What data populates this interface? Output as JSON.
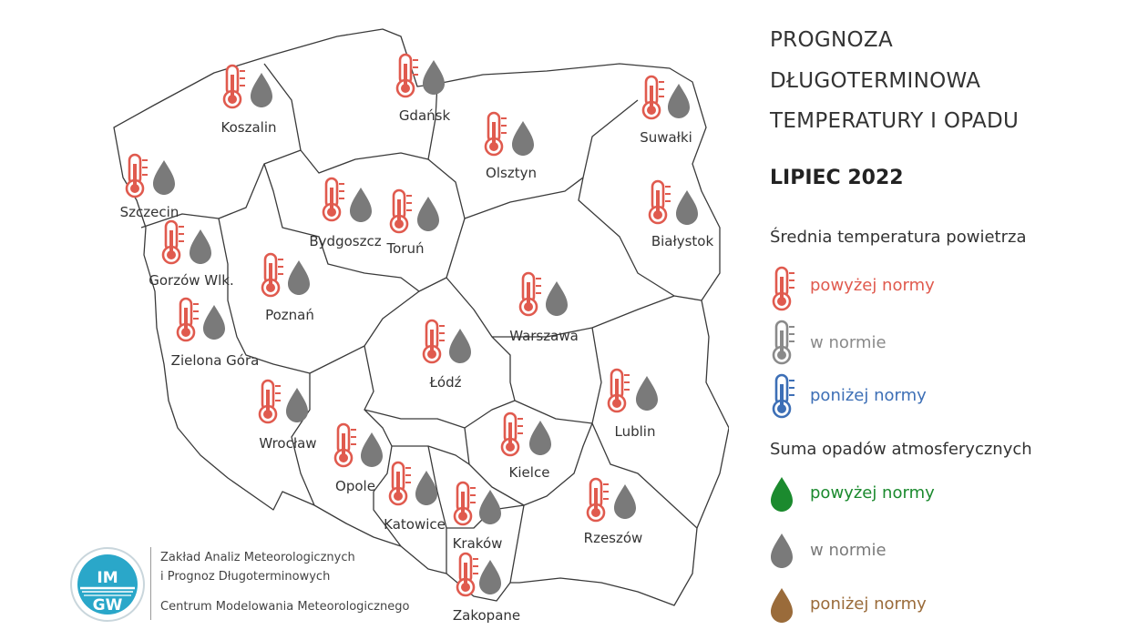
{
  "title_lines": [
    "PROGNOZA",
    "DŁUGOTERMINOWA",
    "TEMPERATURY I OPADU"
  ],
  "month": "LIPIEC 2022",
  "legend": {
    "temp_heading": "Średnia temperatura powietrza",
    "temp_items": [
      {
        "label": "powyżej normy",
        "color": "#e05a4e"
      },
      {
        "label": "w normie",
        "color": "#8a8a8a"
      },
      {
        "label": "poniżej normy",
        "color": "#3d6fb6"
      }
    ],
    "precip_heading": "Suma opadów atmosferycznych",
    "precip_items": [
      {
        "label": "powyżej normy",
        "color": "#1b8a2e"
      },
      {
        "label": "w normie",
        "color": "#7a7a7a"
      },
      {
        "label": "poniżej normy",
        "color": "#9a6b3a"
      }
    ]
  },
  "cities": [
    {
      "name": "Koszalin",
      "temp": "above",
      "precip": "normal"
    },
    {
      "name": "Gdańsk",
      "temp": "above",
      "precip": "normal"
    },
    {
      "name": "Suwałki",
      "temp": "above",
      "precip": "normal"
    },
    {
      "name": "Olsztyn",
      "temp": "above",
      "precip": "normal"
    },
    {
      "name": "Szczecin",
      "temp": "above",
      "precip": "normal"
    },
    {
      "name": "Bydgoszcz",
      "temp": "above",
      "precip": "normal"
    },
    {
      "name": "Toruń",
      "temp": "above",
      "precip": "normal"
    },
    {
      "name": "Białystok",
      "temp": "above",
      "precip": "normal"
    },
    {
      "name": "Gorzów Wlk.",
      "temp": "above",
      "precip": "normal"
    },
    {
      "name": "Poznań",
      "temp": "above",
      "precip": "normal"
    },
    {
      "name": "Warszawa",
      "temp": "above",
      "precip": "normal"
    },
    {
      "name": "Zielona Góra",
      "temp": "above",
      "precip": "normal"
    },
    {
      "name": "Łódź",
      "temp": "above",
      "precip": "normal"
    },
    {
      "name": "Lublin",
      "temp": "above",
      "precip": "normal"
    },
    {
      "name": "Wrocław",
      "temp": "above",
      "precip": "normal"
    },
    {
      "name": "Kielce",
      "temp": "above",
      "precip": "normal"
    },
    {
      "name": "Opole",
      "temp": "above",
      "precip": "normal"
    },
    {
      "name": "Katowice",
      "temp": "above",
      "precip": "normal"
    },
    {
      "name": "Kraków",
      "temp": "above",
      "precip": "normal"
    },
    {
      "name": "Rzeszów",
      "temp": "above",
      "precip": "normal"
    },
    {
      "name": "Zakopane",
      "temp": "above",
      "precip": "normal"
    }
  ],
  "organization": {
    "line1": "Zakład Analiz Meteorologicznych",
    "line2": "i Prognoz Długoterminowych",
    "line3": "Centrum Modelowania Meteorologicznego",
    "logo_top": "IM",
    "logo_bottom": "GW"
  },
  "icons": {
    "temperature": "thermometer-icon",
    "precipitation": "raindrop-icon",
    "logo": "imgw-logo"
  }
}
